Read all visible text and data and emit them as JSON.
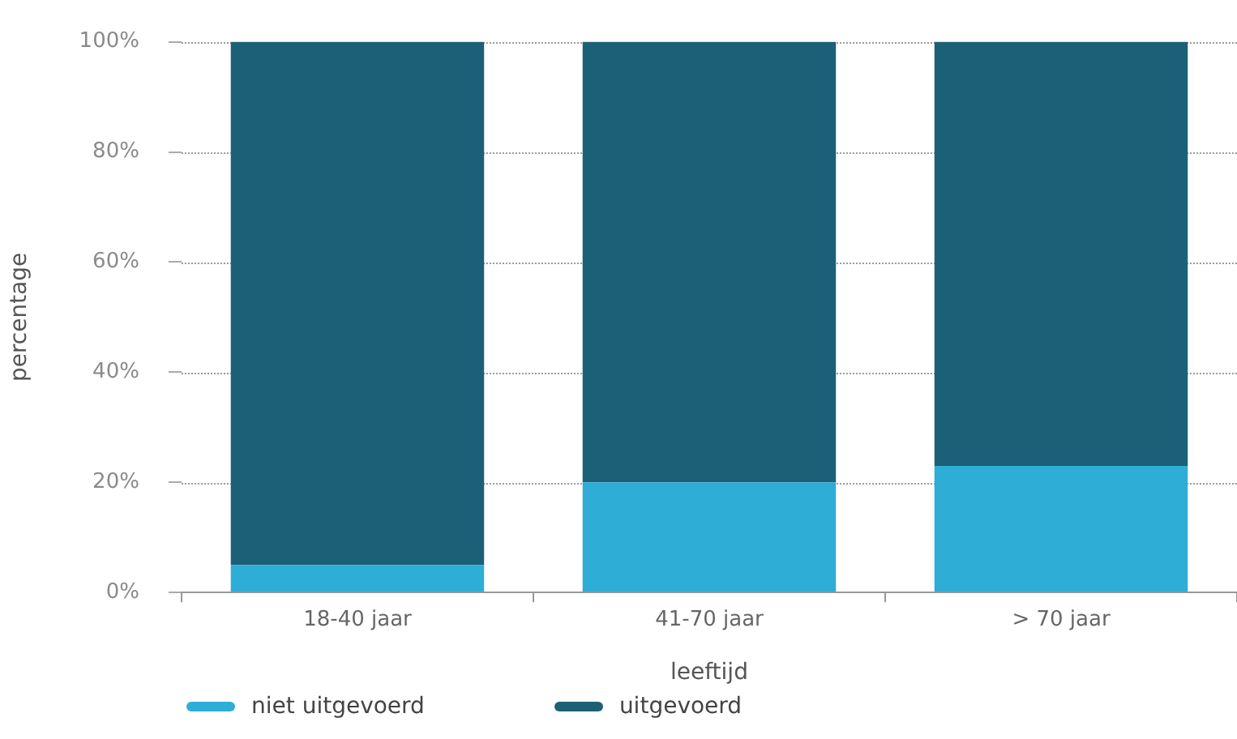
{
  "chart_data": {
    "type": "bar",
    "stacked": true,
    "xlabel": "leeftijd",
    "ylabel": "percentage",
    "categories": [
      "18-40 jaar",
      "41-70 jaar",
      "> 70 jaar"
    ],
    "series": [
      {
        "name": "niet uitgevoerd",
        "color": "#2eadd6",
        "values": [
          5,
          20,
          23
        ]
      },
      {
        "name": "uitgevoerd",
        "color": "#1c6078",
        "values": [
          95,
          80,
          77
        ]
      }
    ],
    "ylim": [
      0,
      100
    ],
    "yticks": [
      {
        "value": 0,
        "label": "0%"
      },
      {
        "value": 20,
        "label": "20%"
      },
      {
        "value": 40,
        "label": "40%"
      },
      {
        "value": 60,
        "label": "60%"
      },
      {
        "value": 80,
        "label": "80%"
      },
      {
        "value": 100,
        "label": "100%"
      }
    ],
    "grid": "y",
    "legend": "bottom left"
  }
}
